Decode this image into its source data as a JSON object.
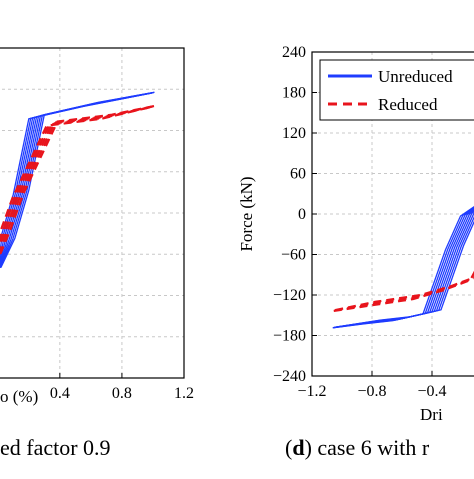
{
  "panels": [
    {
      "caption_prefix": "",
      "caption_text": "ed factor 0.9"
    },
    {
      "caption_prefix": "(",
      "caption_letter": "d",
      "caption_suffix": ") case 6 with r"
    }
  ],
  "chart_data": [
    {
      "type": "line",
      "title": "",
      "xlabel": "o (%)",
      "ylabel": "",
      "x_ticks": [
        0.4,
        0.8,
        1.2
      ],
      "xlim": [
        -0.05,
        1.2
      ],
      "ylim": [
        -240,
        240
      ],
      "grid": true,
      "series": [
        {
          "color": "#1f3cff",
          "x": [
            0.01,
            0.06,
            0.15,
            0.25,
            0.6,
            1.0
          ],
          "y": [
            -80,
            -40,
            30,
            140,
            158,
            175
          ]
        },
        {
          "color": "#e8141c",
          "x": [
            0.01,
            0.05,
            0.13,
            0.35,
            0.7,
            1.0
          ],
          "y": [
            -60,
            -25,
            25,
            130,
            140,
            155
          ]
        }
      ]
    },
    {
      "type": "line",
      "title": "",
      "xlabel": "Dri",
      "ylabel": "Force (kN)",
      "x_ticks": [
        -1.2,
        -0.8,
        -0.4
      ],
      "y_ticks": [
        -240,
        -180,
        -120,
        -60,
        0,
        60,
        120,
        180,
        240
      ],
      "xlim": [
        -1.2,
        0.0
      ],
      "ylim": [
        -240,
        240
      ],
      "grid": true,
      "legend_position": "top-right",
      "series": [
        {
          "name": "Unreduced",
          "color": "#1f3cff",
          "x": [
            -1.05,
            -0.8,
            -0.6,
            -0.4,
            -0.25,
            -0.15,
            -0.05
          ],
          "y": [
            -168,
            -160,
            -155,
            -145,
            -50,
            0,
            20
          ]
        },
        {
          "name": "Reduced",
          "color": "#e8141c",
          "x": [
            -1.05,
            -0.8,
            -0.5,
            -0.3,
            -0.12,
            -0.05
          ],
          "y": [
            -143,
            -133,
            -123,
            -110,
            -95,
            -60
          ]
        }
      ]
    }
  ]
}
